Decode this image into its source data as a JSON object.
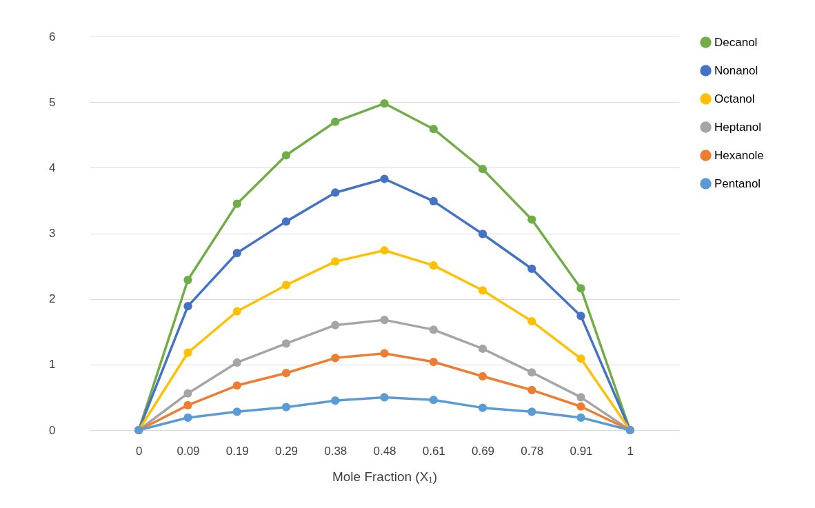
{
  "chart_data": {
    "type": "line",
    "xlabel": "Mole Fraction (X₁)",
    "categories": [
      "0",
      "0.09",
      "0.19",
      "0.29",
      "0.38",
      "0.48",
      "0.61",
      "0.69",
      "0.78",
      "0.91",
      "1"
    ],
    "series": [
      {
        "name": "Decanol",
        "color": "#70ad47",
        "values": [
          0,
          2.29,
          3.45,
          4.19,
          4.7,
          4.98,
          4.59,
          3.98,
          3.21,
          2.16,
          0
        ]
      },
      {
        "name": "Nonanol",
        "color": "#4472c4",
        "values": [
          0,
          1.89,
          2.7,
          3.18,
          3.62,
          3.83,
          3.49,
          2.99,
          2.46,
          1.74,
          0
        ]
      },
      {
        "name": "Octanol",
        "color": "#ffc000",
        "values": [
          0,
          1.18,
          1.81,
          2.21,
          2.57,
          2.74,
          2.51,
          2.13,
          1.66,
          1.09,
          0
        ]
      },
      {
        "name": "Heptanol",
        "color": "#a5a5a5",
        "values": [
          0,
          0.56,
          1.03,
          1.32,
          1.6,
          1.68,
          1.53,
          1.24,
          0.88,
          0.5,
          0
        ]
      },
      {
        "name": "Hexanole",
        "color": "#ed7d31",
        "values": [
          0,
          0.38,
          0.68,
          0.87,
          1.1,
          1.17,
          1.04,
          0.82,
          0.61,
          0.36,
          0
        ]
      },
      {
        "name": "Pentanol",
        "color": "#5b9bd5",
        "values": [
          0,
          0.19,
          0.28,
          0.35,
          0.45,
          0.5,
          0.46,
          0.34,
          0.28,
          0.19,
          0
        ]
      }
    ],
    "ylim": [
      0,
      6
    ],
    "yticks": [
      0,
      1,
      2,
      3,
      4,
      5,
      6
    ],
    "grid": "y",
    "legend": "right",
    "marker": "circle",
    "line_style": "solid"
  }
}
